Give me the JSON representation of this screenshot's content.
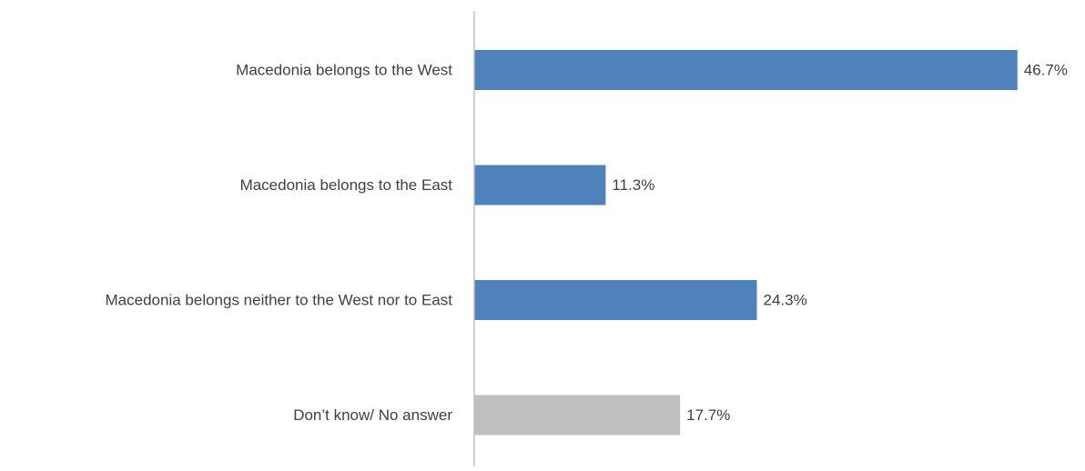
{
  "chart_data": {
    "type": "bar",
    "orientation": "horizontal",
    "categories": [
      "Macedonia belongs to the West",
      "Macedonia belongs to the East",
      "Macedonia belongs neither to the West nor to East",
      "Don’t know/ No answer"
    ],
    "values": [
      46.7,
      11.3,
      24.3,
      17.7
    ],
    "value_labels": [
      "46.7%",
      "11.3%",
      "24.3%",
      "17.7%"
    ],
    "bar_colors": [
      "#4f81bd",
      "#4f81bd",
      "#4f81bd",
      "#bfbfbf"
    ],
    "axis_color": "#bfbfbf",
    "xlim": [
      0,
      47.5
    ],
    "grid": false,
    "legend": "none",
    "title": "",
    "xlabel": "",
    "ylabel": ""
  }
}
